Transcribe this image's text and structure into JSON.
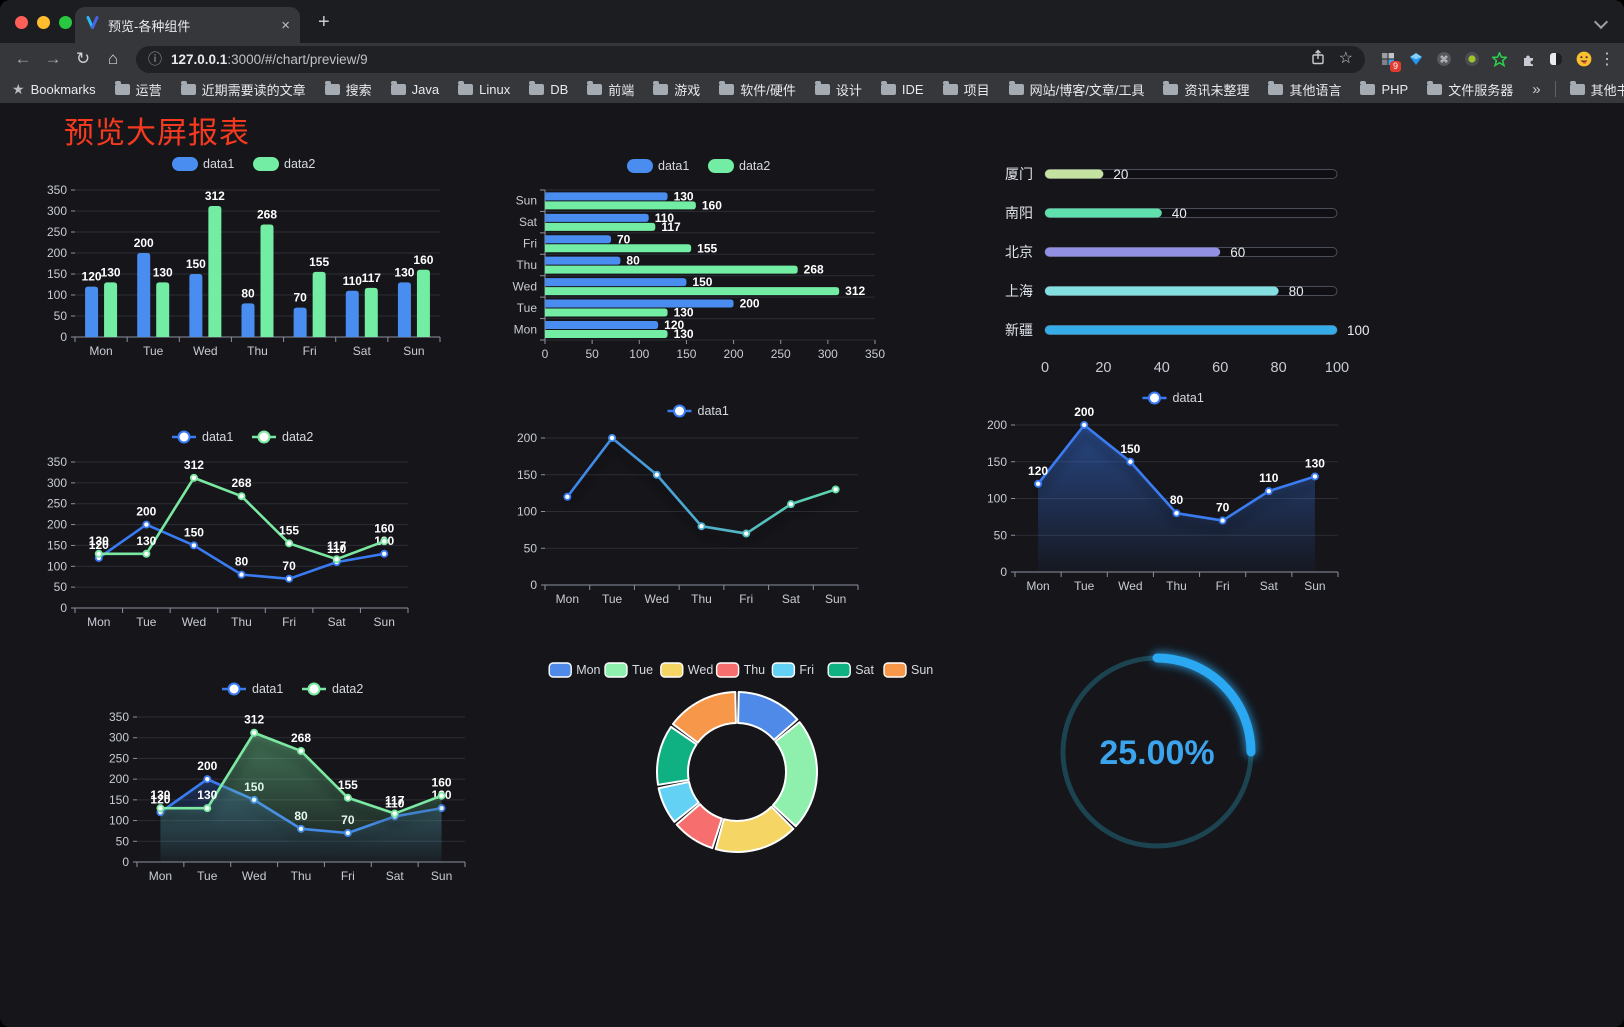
{
  "browser": {
    "tab": {
      "title": "预览-各种组件"
    },
    "url": {
      "host": "127.0.0.1",
      "rest": ":3000/#/chart/preview/9"
    },
    "extensions_badge": "9",
    "bookmarks_bar": {
      "bookmarks_label": "Bookmarks",
      "folders": [
        "运营",
        "近期需要读的文章",
        "搜索",
        "Java",
        "Linux",
        "DB",
        "前端",
        "游戏",
        "软件/硬件",
        "设计",
        "IDE",
        "项目",
        "网站/博客/文章/工具",
        "资讯未整理",
        "其他语言",
        "PHP",
        "文件服务器"
      ],
      "overflow": "»",
      "other_bookmarks": "其他书签"
    }
  },
  "icons": {
    "back": "←",
    "forward": "→",
    "reload": "↻",
    "home": "⌂",
    "info": "ⓘ",
    "star": "☆",
    "bookmark_star": "★",
    "kebab": "⋮",
    "newtab": "+",
    "close": "×",
    "command": "⌘"
  },
  "page": {
    "title": "预览大屏报表"
  },
  "chart_data": [
    {
      "id": "grouped-bar-vertical",
      "type": "bar",
      "orientation": "vertical",
      "categories": [
        "Mon",
        "Tue",
        "Wed",
        "Thu",
        "Fri",
        "Sat",
        "Sun"
      ],
      "series": [
        {
          "name": "data1",
          "color": "#4a8df0",
          "values": [
            120,
            200,
            150,
            80,
            70,
            110,
            130
          ]
        },
        {
          "name": "data2",
          "color": "#73eda3",
          "values": [
            130,
            130,
            312,
            268,
            155,
            117,
            160
          ]
        }
      ],
      "ylim": [
        0,
        350
      ],
      "yticks": [
        0,
        50,
        100,
        150,
        200,
        250,
        300,
        350
      ],
      "grid": true,
      "legend_position": "top",
      "data_labels": true
    },
    {
      "id": "grouped-bar-horizontal",
      "type": "bar",
      "orientation": "horizontal",
      "categories": [
        "Mon",
        "Tue",
        "Wed",
        "Thu",
        "Fri",
        "Sat",
        "Sun"
      ],
      "category_display": "bottom_up",
      "series": [
        {
          "name": "data1",
          "color": "#4a8df0",
          "values": [
            120,
            200,
            150,
            80,
            70,
            110,
            130
          ]
        },
        {
          "name": "data2",
          "color": "#73eda3",
          "values": [
            130,
            130,
            312,
            268,
            155,
            117,
            160
          ]
        }
      ],
      "xlim": [
        0,
        350
      ],
      "xticks": [
        0,
        50,
        100,
        150,
        200,
        250,
        300,
        350
      ],
      "grid": true,
      "legend_position": "top",
      "data_labels": true
    },
    {
      "id": "progress-bars",
      "type": "bar",
      "subtype": "progress",
      "rows": [
        {
          "label": "厦门",
          "value": 20,
          "color": "#c5e3a0"
        },
        {
          "label": "南阳",
          "value": 40,
          "color": "#5fe0ad"
        },
        {
          "label": "北京",
          "value": 60,
          "color": "#9290e2"
        },
        {
          "label": "上海",
          "value": 80,
          "color": "#84dfe1"
        },
        {
          "label": "新疆",
          "value": 100,
          "color": "#35abe8"
        }
      ],
      "xlim": [
        0,
        100
      ],
      "xticks": [
        0,
        20,
        40,
        60,
        80,
        100
      ]
    },
    {
      "id": "line-two-series",
      "type": "line",
      "categories": [
        "Mon",
        "Tue",
        "Wed",
        "Thu",
        "Fri",
        "Sat",
        "Sun"
      ],
      "series": [
        {
          "name": "data1",
          "color": "#3a7bf2",
          "values": [
            120,
            200,
            150,
            80,
            70,
            110,
            130
          ]
        },
        {
          "name": "data2",
          "color": "#7be8a2",
          "values": [
            130,
            130,
            312,
            268,
            155,
            117,
            160
          ]
        }
      ],
      "ylim": [
        0,
        350
      ],
      "yticks": [
        0,
        50,
        100,
        150,
        200,
        250,
        300,
        350
      ],
      "grid": true,
      "legend_position": "top",
      "data_labels": true
    },
    {
      "id": "line-gradient",
      "type": "line",
      "categories": [
        "Mon",
        "Tue",
        "Wed",
        "Thu",
        "Fri",
        "Sat",
        "Sun"
      ],
      "series": [
        {
          "name": "data1",
          "gradient": [
            "#3a7bf2",
            "#62dfa8"
          ],
          "values": [
            120,
            200,
            150,
            80,
            70,
            110,
            130
          ]
        }
      ],
      "ylim": [
        0,
        200
      ],
      "yticks": [
        0,
        50,
        100,
        150,
        200
      ],
      "grid": true,
      "legend_position": "top",
      "data_labels": false,
      "shadow": true
    },
    {
      "id": "area-single",
      "type": "area",
      "categories": [
        "Mon",
        "Tue",
        "Wed",
        "Thu",
        "Fri",
        "Sat",
        "Sun"
      ],
      "series": [
        {
          "name": "data1",
          "color": "#3a7bf2",
          "values": [
            120,
            200,
            150,
            80,
            70,
            110,
            130
          ]
        }
      ],
      "ylim": [
        0,
        200
      ],
      "yticks": [
        0,
        50,
        100,
        150,
        200
      ],
      "grid": true,
      "legend_position": "top",
      "data_labels": true,
      "shadow": true
    },
    {
      "id": "area-two-series",
      "type": "area",
      "categories": [
        "Mon",
        "Tue",
        "Wed",
        "Thu",
        "Fri",
        "Sat",
        "Sun"
      ],
      "series": [
        {
          "name": "data1",
          "color": "#3a7bf2",
          "values": [
            120,
            200,
            150,
            80,
            70,
            110,
            130
          ]
        },
        {
          "name": "data2",
          "color": "#7be8a2",
          "values": [
            130,
            130,
            312,
            268,
            155,
            117,
            160
          ]
        }
      ],
      "ylim": [
        0,
        350
      ],
      "yticks": [
        0,
        50,
        100,
        150,
        200,
        250,
        300,
        350
      ],
      "grid": true,
      "legend_position": "top",
      "data_labels": true,
      "shadow": true
    },
    {
      "id": "donut",
      "type": "pie",
      "inner_ratio": 0.61,
      "legend_position": "top",
      "slices": [
        {
          "label": "Mon",
          "value": 120,
          "color": "#4f8ae9"
        },
        {
          "label": "Tue",
          "value": 200,
          "color": "#8ff0ae"
        },
        {
          "label": "Wed",
          "value": 150,
          "color": "#f5d564"
        },
        {
          "label": "Thu",
          "value": 80,
          "color": "#f66f6e"
        },
        {
          "label": "Fri",
          "value": 70,
          "color": "#63d1f4"
        },
        {
          "label": "Sat",
          "value": 110,
          "color": "#0fb183"
        },
        {
          "label": "Sun",
          "value": 130,
          "color": "#f79749"
        }
      ]
    },
    {
      "id": "gauge",
      "type": "gauge",
      "percent": 25,
      "label": "25.00%",
      "color": "#2aa9f2",
      "track_color": "#1c4350",
      "text_color": "#3ba4ec"
    }
  ]
}
